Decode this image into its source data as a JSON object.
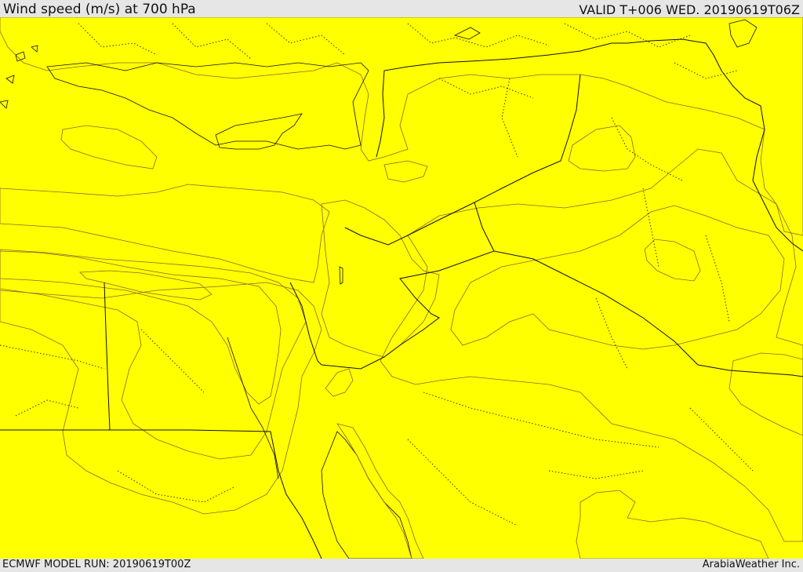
{
  "header": {
    "title": "Wind speed (m/s) at 700 hPa",
    "valid_time": "VALID T+006 WED. 20190619T06Z"
  },
  "footer": {
    "model_run": "ECMWF MODEL RUN: 20190619T00Z",
    "credit": "ArabiaWeather Inc."
  },
  "map": {
    "region": "Eastern Mediterranean / Middle East",
    "colors": {
      "sea_no_data": "#ffffff",
      "lowest_band": "#fcdcaa",
      "band_1": "#ffff00",
      "band_2": "#ffd700",
      "band_3": "#ffb700",
      "band_4": "#ff9800",
      "band_5": "#ff7a10"
    }
  }
}
